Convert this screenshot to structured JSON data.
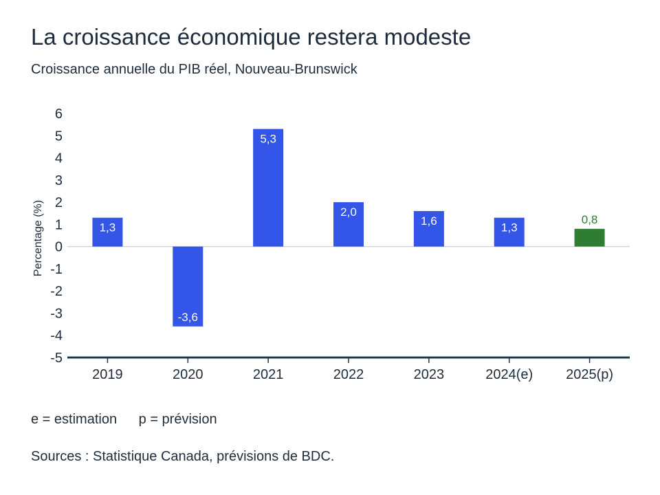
{
  "chart_data": {
    "type": "bar",
    "title": "La croissance économique restera modeste",
    "subtitle": "Croissance annuelle du PIB réel, Nouveau-Brunswick",
    "ylabel": "Percentage (%)",
    "xlabel": "",
    "ylim": [
      -5,
      6
    ],
    "yticks": [
      6,
      5,
      4,
      3,
      2,
      1,
      0,
      -1,
      -2,
      -3,
      -4,
      -5
    ],
    "categories": [
      "2019",
      "2020",
      "2021",
      "2022",
      "2023",
      "2024(e)",
      "2025(p)"
    ],
    "values": [
      1.3,
      -3.6,
      5.3,
      2.0,
      1.6,
      1.3,
      0.8
    ],
    "data_labels": [
      "1,3",
      "-3,6",
      "5,3",
      "2,0",
      "1,6",
      "1,3",
      "0,8"
    ],
    "bar_kinds": [
      "actual",
      "actual",
      "actual",
      "actual",
      "actual",
      "actual",
      "forecast"
    ],
    "grid": false,
    "colors": {
      "actual": "#3355e8",
      "forecast": "#2e7d32",
      "forecast_label": "#2e7d32",
      "axis": "#1b3a4b",
      "zero_line": "#d5d5d5",
      "text": "#1e2b3a"
    }
  },
  "notes": {
    "estimation": "e = estimation",
    "prevision": "p = prévision"
  },
  "source": "Sources : Statistique Canada, prévisions de BDC."
}
